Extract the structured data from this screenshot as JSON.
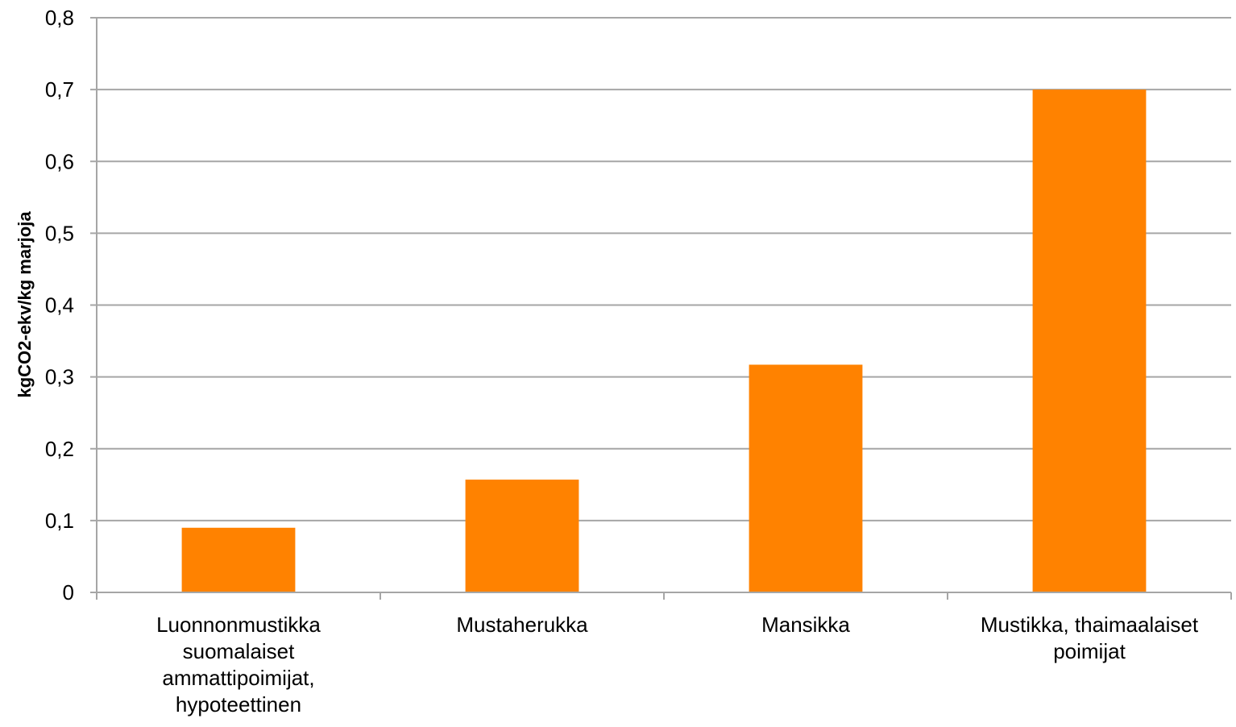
{
  "chart_data": {
    "type": "bar",
    "categories": [
      [
        "Luonnonmustikka",
        "suomalaiset",
        "ammattipoimijat,",
        "hypoteettinen"
      ],
      [
        "Mustaherukka"
      ],
      [
        "Mansikka"
      ],
      [
        "Mustikka, thaimaalaiset",
        "poimijat"
      ]
    ],
    "values": [
      0.09,
      0.157,
      0.317,
      0.7
    ],
    "ylabel": "kgCO2-ekv/kg marjoja",
    "ylim": [
      0,
      0.8
    ],
    "yticks": [
      0,
      0.1,
      0.2,
      0.3,
      0.4,
      0.5,
      0.6,
      0.7,
      0.8
    ],
    "ytick_labels": [
      "0",
      "0,1",
      "0,2",
      "0,3",
      "0,4",
      "0,5",
      "0,6",
      "0,7",
      "0,8"
    ],
    "grid": true,
    "legend": false,
    "colors": {
      "bar": "#FF8200",
      "grid": "#A6A6A6",
      "axis": "#A6A6A6"
    }
  }
}
